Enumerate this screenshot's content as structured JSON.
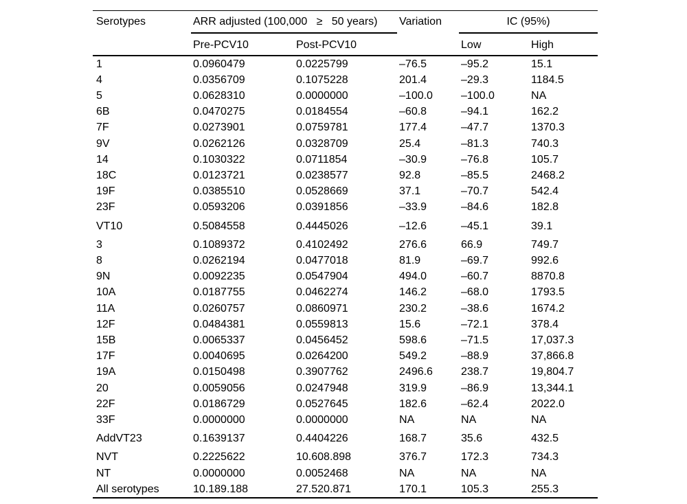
{
  "colors": {
    "background": "#ffffff",
    "text": "#000000",
    "rule": "#000000"
  },
  "table": {
    "header": {
      "serotypes": "Serotypes",
      "arr_group": "ARR adjusted (100,000   ≥   50 years)",
      "variation": "Variation",
      "ic_group": "IC (95%)",
      "pre": "Pre-PCV10",
      "post": "Post-PCV10",
      "low": "Low",
      "high": "High"
    },
    "rows": [
      {
        "serotype": "1",
        "pre": "0.0960479",
        "post": "0.0225799",
        "variation": "–76.5",
        "low": "–95.2",
        "high": "15.1"
      },
      {
        "serotype": "4",
        "pre": "0.0356709",
        "post": "0.1075228",
        "variation": "201.4",
        "low": "–29.3",
        "high": "1184.5"
      },
      {
        "serotype": "5",
        "pre": "0.0628310",
        "post": "0.0000000",
        "variation": "–100.0",
        "low": "–100.0",
        "high": "NA"
      },
      {
        "serotype": "6B",
        "pre": "0.0470275",
        "post": "0.0184554",
        "variation": "–60.8",
        "low": "–94.1",
        "high": "162.2"
      },
      {
        "serotype": "7F",
        "pre": "0.0273901",
        "post": "0.0759781",
        "variation": "177.4",
        "low": "–47.7",
        "high": "1370.3"
      },
      {
        "serotype": "9V",
        "pre": "0.0262126",
        "post": "0.0328709",
        "variation": "25.4",
        "low": "–81.3",
        "high": "740.3"
      },
      {
        "serotype": "14",
        "pre": "0.1030322",
        "post": "0.0711854",
        "variation": "–30.9",
        "low": "–76.8",
        "high": "105.7"
      },
      {
        "serotype": "18C",
        "pre": "0.0123721",
        "post": "0.0238577",
        "variation": "92.8",
        "low": "–85.5",
        "high": "2468.2"
      },
      {
        "serotype": "19F",
        "pre": "0.0385510",
        "post": "0.0528669",
        "variation": "37.1",
        "low": "–70.7",
        "high": "542.4"
      },
      {
        "serotype": "23F",
        "pre": "0.0593206",
        "post": "0.0391856",
        "variation": "–33.9",
        "low": "–84.6",
        "high": "182.8"
      },
      {
        "serotype": "VT10",
        "pre": "0.5084558",
        "post": "0.4445026",
        "variation": "–12.6",
        "low": "–45.1",
        "high": "39.1",
        "group_start": true
      },
      {
        "serotype": "3",
        "pre": "0.1089372",
        "post": "0.4102492",
        "variation": "276.6",
        "low": "66.9",
        "high": "749.7",
        "group_start": true
      },
      {
        "serotype": "8",
        "pre": "0.0262194",
        "post": "0.0477018",
        "variation": "81.9",
        "low": "–69.7",
        "high": "992.6"
      },
      {
        "serotype": "9N",
        "pre": "0.0092235",
        "post": "0.0547904",
        "variation": "494.0",
        "low": "–60.7",
        "high": "8870.8"
      },
      {
        "serotype": "10A",
        "pre": "0.0187755",
        "post": "0.0462274",
        "variation": "146.2",
        "low": "–68.0",
        "high": "1793.5"
      },
      {
        "serotype": "11A",
        "pre": "0.0260757",
        "post": "0.0860971",
        "variation": "230.2",
        "low": "–38.6",
        "high": "1674.2"
      },
      {
        "serotype": "12F",
        "pre": "0.0484381",
        "post": "0.0559813",
        "variation": "15.6",
        "low": "–72.1",
        "high": "378.4"
      },
      {
        "serotype": "15B",
        "pre": "0.0065337",
        "post": "0.0456452",
        "variation": "598.6",
        "low": "–71.5",
        "high": "17,037.3"
      },
      {
        "serotype": "17F",
        "pre": "0.0040695",
        "post": "0.0264200",
        "variation": "549.2",
        "low": "–88.9",
        "high": "37,866.8"
      },
      {
        "serotype": "19A",
        "pre": "0.0150498",
        "post": "0.3907762",
        "variation": "2496.6",
        "low": "238.7",
        "high": "19,804.7"
      },
      {
        "serotype": "20",
        "pre": "0.0059056",
        "post": "0.0247948",
        "variation": "319.9",
        "low": "–86.9",
        "high": "13,344.1"
      },
      {
        "serotype": "22F",
        "pre": "0.0186729",
        "post": "0.0527645",
        "variation": "182.6",
        "low": "–62.4",
        "high": "2022.0"
      },
      {
        "serotype": "33F",
        "pre": "0.0000000",
        "post": "0.0000000",
        "variation": "NA",
        "low": "NA",
        "high": "NA"
      },
      {
        "serotype": "AddVT23",
        "pre": "0.1639137",
        "post": "0.4404226",
        "variation": "168.7",
        "low": "35.6",
        "high": "432.5",
        "group_start": true
      },
      {
        "serotype": "NVT",
        "pre": "0.2225622",
        "post": "10.608.898",
        "variation": "376.7",
        "low": "172.3",
        "high": "734.3",
        "group_start": true
      },
      {
        "serotype": "NT",
        "pre": "0.0000000",
        "post": "0.0052468",
        "variation": "NA",
        "low": "NA",
        "high": "NA"
      },
      {
        "serotype": "All serotypes",
        "pre": "10.189.188",
        "post": "27.520.871",
        "variation": "170.1",
        "low": "105.3",
        "high": "255.3"
      }
    ]
  }
}
